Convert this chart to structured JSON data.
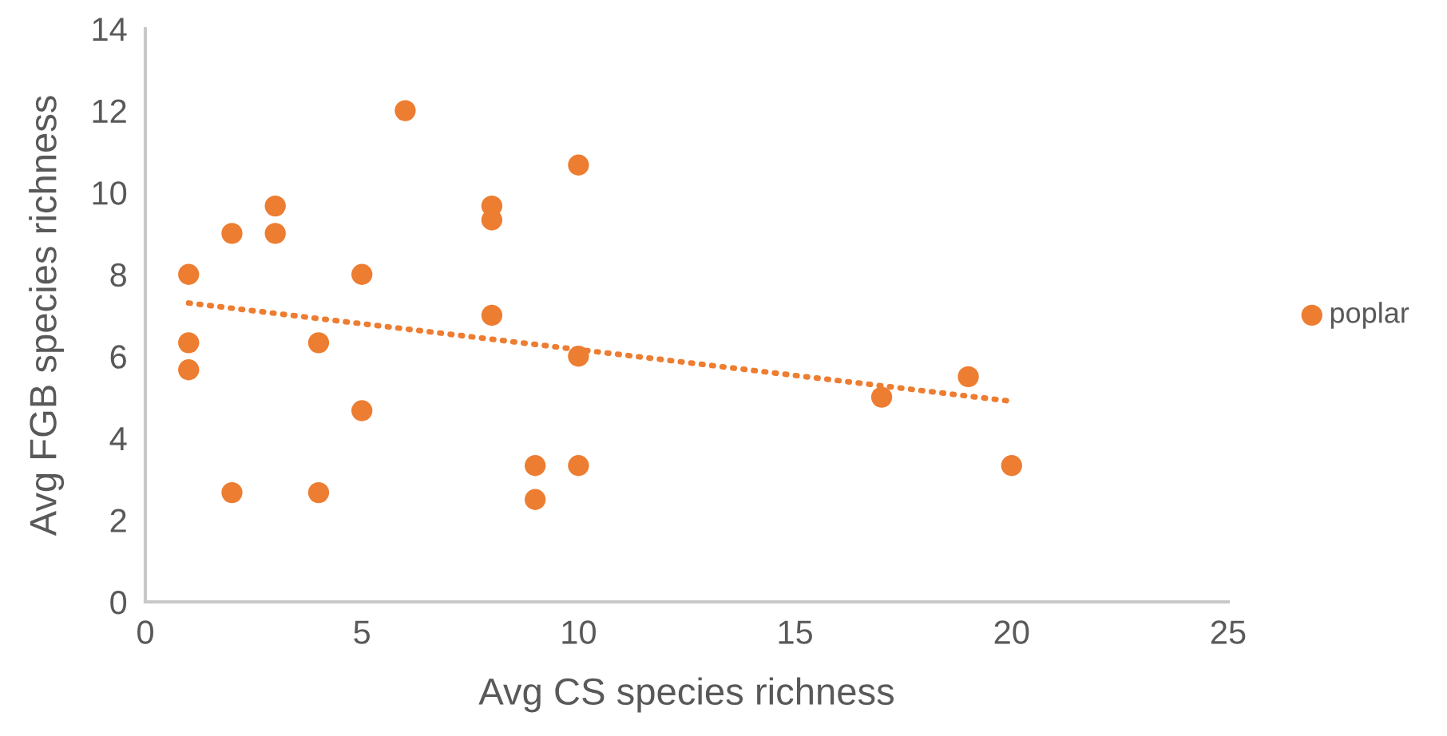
{
  "chart_data": {
    "type": "scatter",
    "xlabel": "Avg CS species richness",
    "ylabel": "Avg FGB species richness",
    "xlim": [
      0,
      25
    ],
    "xticks": [
      0,
      5,
      10,
      15,
      20,
      25
    ],
    "ylim": [
      0,
      14
    ],
    "yticks": [
      0,
      2,
      4,
      6,
      8,
      10,
      12,
      14
    ],
    "grid": false,
    "legend": "right",
    "series": [
      {
        "name": "poplar",
        "color": "#ed7d31",
        "marker": "circle",
        "x": [
          1,
          1,
          1,
          2,
          2,
          3,
          3,
          4,
          4,
          5,
          5,
          6,
          8,
          8,
          8,
          9,
          9,
          10,
          10,
          10,
          17,
          19,
          20
        ],
        "values": [
          8,
          6.33,
          5.67,
          9,
          2.67,
          9.67,
          9,
          6.33,
          2.67,
          8,
          4.67,
          12,
          9.67,
          9.33,
          7,
          3.33,
          2.5,
          10.67,
          6,
          3.33,
          5,
          5.5,
          3.33
        ]
      },
      {
        "color": "#ed7d31",
        "type": "line",
        "line_style": "dotted",
        "marker": "none",
        "x": [
          1,
          20
        ],
        "values": [
          7.3,
          4.9
        ]
      }
    ]
  }
}
